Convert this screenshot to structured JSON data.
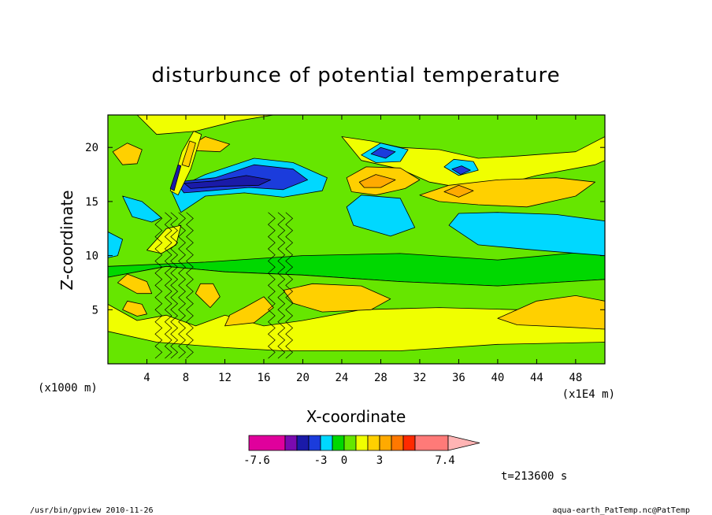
{
  "chart_data": {
    "type": "heatmap",
    "title": "disturbunce of potential temperature",
    "xlabel": "X-coordinate",
    "ylabel": "Z-coordinate",
    "x_unit_label": "(x1000 m)",
    "x_scale_label": "(x1E4 m)",
    "xlim": [
      0,
      51
    ],
    "ylim": [
      0,
      23
    ],
    "x_ticks": [
      "4",
      "8",
      "12",
      "16",
      "20",
      "24",
      "28",
      "32",
      "36",
      "40",
      "44",
      "48"
    ],
    "x_tick_values": [
      4,
      8,
      12,
      16,
      20,
      24,
      28,
      32,
      36,
      40,
      44,
      48
    ],
    "y_ticks": [
      "5",
      "10",
      "15",
      "20"
    ],
    "y_tick_values": [
      5,
      10,
      15,
      20
    ],
    "colorbar": {
      "colors": [
        "#e0009c",
        "#7a0ab0",
        "#1a1aa8",
        "#1b3cdc",
        "#00d8ff",
        "#00d800",
        "#66e600",
        "#f0ff00",
        "#ffd000",
        "#ffaa00",
        "#ff7800",
        "#ff2a00",
        "#ff7a78",
        "#ffb4b4"
      ],
      "labels": [
        "-7.6",
        "-3",
        "0",
        "3",
        "7.4"
      ],
      "label_slots": [
        0,
        4,
        6,
        9,
        13
      ]
    },
    "time_label": "t=213600 s",
    "regions": [
      {
        "level": 1,
        "color": "#f0ff00",
        "pts": [
          [
            0,
            0
          ],
          [
            0,
            8
          ],
          [
            6,
            9
          ],
          [
            12,
            8.5
          ],
          [
            20,
            8.2
          ],
          [
            30,
            7.6
          ],
          [
            40,
            7.2
          ],
          [
            51,
            7.8
          ],
          [
            51,
            0
          ]
        ]
      },
      {
        "level": 0,
        "color": "#66e600",
        "pts": [
          [
            0,
            0
          ],
          [
            0,
            3
          ],
          [
            5,
            2
          ],
          [
            12,
            1.5
          ],
          [
            18,
            1.2
          ],
          [
            30,
            1.2
          ],
          [
            40,
            1.8
          ],
          [
            51,
            2
          ],
          [
            51,
            0
          ]
        ]
      },
      {
        "level": 0,
        "color": "#66e600",
        "pts": [
          [
            0,
            5.5
          ],
          [
            3,
            4
          ],
          [
            6,
            4.5
          ],
          [
            9,
            3.5
          ],
          [
            12,
            4.5
          ],
          [
            16,
            3.5
          ],
          [
            20,
            4
          ],
          [
            26,
            5
          ],
          [
            34,
            5.2
          ],
          [
            42,
            5
          ],
          [
            51,
            5.6
          ],
          [
            51,
            7.8
          ],
          [
            40,
            7.2
          ],
          [
            30,
            7.6
          ],
          [
            20,
            8.2
          ],
          [
            12,
            8.5
          ],
          [
            6,
            9
          ],
          [
            0,
            8
          ]
        ]
      },
      {
        "level": 2,
        "color": "#ffd000",
        "pts": [
          [
            1,
            7.5
          ],
          [
            3,
            6.5
          ],
          [
            4.5,
            6.5
          ],
          [
            4,
            7.6
          ],
          [
            2,
            8.3
          ]
        ]
      },
      {
        "level": 2,
        "color": "#ffd000",
        "pts": [
          [
            1.5,
            5
          ],
          [
            3,
            4.4
          ],
          [
            4,
            4.6
          ],
          [
            3.5,
            5.5
          ],
          [
            2,
            5.8
          ]
        ]
      },
      {
        "level": 2,
        "color": "#ffd000",
        "pts": [
          [
            9,
            6.5
          ],
          [
            10.5,
            5.2
          ],
          [
            11.5,
            6.2
          ],
          [
            10.8,
            7.4
          ],
          [
            9.5,
            7.4
          ]
        ]
      },
      {
        "level": 2,
        "color": "#ffd000",
        "pts": [
          [
            12,
            3.5
          ],
          [
            15,
            3.8
          ],
          [
            17,
            5.2
          ],
          [
            16,
            6.2
          ],
          [
            14,
            5.2
          ],
          [
            12.5,
            4.5
          ]
        ]
      },
      {
        "level": 2,
        "color": "#ffd000",
        "pts": [
          [
            18,
            6.8
          ],
          [
            21,
            7.4
          ],
          [
            26,
            7.2
          ],
          [
            29,
            6
          ],
          [
            27,
            5
          ],
          [
            22,
            4.8
          ],
          [
            19,
            5.6
          ]
        ]
      },
      {
        "level": 2,
        "color": "#ffd000",
        "pts": [
          [
            40,
            4.2
          ],
          [
            44,
            5.8
          ],
          [
            48,
            6.3
          ],
          [
            51,
            5.8
          ],
          [
            51,
            3.2
          ],
          [
            47,
            3.4
          ],
          [
            42,
            3.6
          ]
        ]
      },
      {
        "level": 0,
        "color": "#66e600",
        "pts": [
          [
            0,
            9
          ],
          [
            10,
            9.4
          ],
          [
            20,
            10
          ],
          [
            30,
            10.2
          ],
          [
            40,
            9.6
          ],
          [
            51,
            10.5
          ],
          [
            51,
            23
          ],
          [
            0,
            23
          ]
        ]
      },
      {
        "level": 2,
        "color": "#ffd000",
        "pts": [
          [
            0.5,
            19.6
          ],
          [
            2,
            20.4
          ],
          [
            3.5,
            19.8
          ],
          [
            3,
            18.5
          ],
          [
            1.5,
            18.4
          ]
        ]
      },
      {
        "level": 2,
        "color": "#ffd000",
        "pts": [
          [
            8.5,
            20.2
          ],
          [
            10,
            21
          ],
          [
            12.5,
            20.3
          ],
          [
            11.5,
            19.6
          ],
          [
            9,
            19.7
          ]
        ]
      },
      {
        "level": 1,
        "color": "#f0ff00",
        "pts": [
          [
            0,
            23
          ],
          [
            3,
            23
          ],
          [
            5,
            21.2
          ],
          [
            9,
            21.5
          ],
          [
            13,
            22.4
          ],
          [
            17,
            23
          ]
        ]
      },
      {
        "level": 1,
        "color": "#f0ff00",
        "pts": [
          [
            4,
            10.5
          ],
          [
            6,
            12.5
          ],
          [
            7.5,
            12.8
          ],
          [
            7,
            11
          ],
          [
            5.5,
            10.2
          ]
        ]
      },
      {
        "level": 1,
        "color": "#f0ff00",
        "pts": [
          [
            24,
            21
          ],
          [
            26,
            18.8
          ],
          [
            30,
            18
          ],
          [
            33,
            16.8
          ],
          [
            38,
            16
          ],
          [
            44,
            17.4
          ],
          [
            50,
            18.4
          ],
          [
            51,
            18.8
          ],
          [
            51,
            21
          ],
          [
            48,
            19.6
          ],
          [
            42,
            19.2
          ],
          [
            38,
            19
          ],
          [
            34,
            19.8
          ],
          [
            30,
            20
          ],
          [
            27,
            20.6
          ]
        ]
      },
      {
        "level": 2,
        "color": "#ffd000",
        "pts": [
          [
            24.5,
            17.2
          ],
          [
            26.5,
            18.2
          ],
          [
            30,
            18.1
          ],
          [
            32,
            17
          ],
          [
            30.5,
            16.2
          ],
          [
            27.5,
            15.6
          ],
          [
            25,
            15.9
          ]
        ]
      },
      {
        "level": 3,
        "color": "#ffaa00",
        "pts": [
          [
            25.8,
            16.8
          ],
          [
            27.5,
            17.5
          ],
          [
            29.5,
            17
          ],
          [
            28,
            16.3
          ],
          [
            26.3,
            16.3
          ]
        ]
      },
      {
        "level": 2,
        "color": "#ffd000",
        "pts": [
          [
            32,
            15.6
          ],
          [
            35,
            16.5
          ],
          [
            40,
            17
          ],
          [
            46,
            17.2
          ],
          [
            50,
            16.8
          ],
          [
            48,
            15.5
          ],
          [
            43,
            14.5
          ],
          [
            38,
            14.7
          ],
          [
            34,
            15
          ]
        ]
      },
      {
        "level": 3,
        "color": "#ffaa00",
        "pts": [
          [
            34.5,
            15.9
          ],
          [
            36,
            16.5
          ],
          [
            37.5,
            16
          ],
          [
            36,
            15.4
          ]
        ]
      },
      {
        "level": -1,
        "color": "#00d8ff",
        "pts": [
          [
            24.5,
            14.5
          ],
          [
            25.2,
            12.8
          ],
          [
            29,
            11.8
          ],
          [
            31.5,
            12.6
          ],
          [
            30,
            15.3
          ],
          [
            26,
            15.6
          ]
        ]
      },
      {
        "level": -1,
        "color": "#00d8ff",
        "pts": [
          [
            35,
            12.8
          ],
          [
            38,
            11
          ],
          [
            44,
            10.5
          ],
          [
            51,
            10
          ],
          [
            51,
            13.2
          ],
          [
            46,
            13.8
          ],
          [
            40,
            14
          ],
          [
            36,
            13.9
          ]
        ]
      },
      {
        "level": -1,
        "color": "#00d8ff",
        "pts": [
          [
            26,
            19.3
          ],
          [
            28,
            20.4
          ],
          [
            30.8,
            19.8
          ],
          [
            30,
            18.7
          ],
          [
            27.5,
            18.6
          ]
        ]
      },
      {
        "level": -2,
        "color": "#1b3cdc",
        "pts": [
          [
            27,
            19.4
          ],
          [
            28,
            20
          ],
          [
            29.5,
            19.6
          ],
          [
            28.5,
            19
          ]
        ]
      },
      {
        "level": -1,
        "color": "#00d8ff",
        "pts": [
          [
            34.5,
            18.2
          ],
          [
            35.5,
            18.9
          ],
          [
            37.5,
            18.7
          ],
          [
            38,
            17.9
          ],
          [
            36,
            17.4
          ]
        ]
      },
      {
        "level": -2,
        "color": "#1b3cdc",
        "pts": [
          [
            35.3,
            18
          ],
          [
            36.3,
            18.3
          ],
          [
            37.2,
            17.9
          ],
          [
            36.2,
            17.5
          ]
        ]
      },
      {
        "level": -1,
        "color": "#00d8ff",
        "pts": [
          [
            6.5,
            16
          ],
          [
            10,
            17.5
          ],
          [
            15,
            19
          ],
          [
            19,
            18.6
          ],
          [
            22.5,
            17.2
          ],
          [
            22,
            16
          ],
          [
            18,
            15.4
          ],
          [
            14,
            15.8
          ],
          [
            10,
            15.5
          ],
          [
            7.5,
            14
          ]
        ]
      },
      {
        "level": -1,
        "color": "#00d8ff",
        "pts": [
          [
            1.5,
            15.5
          ],
          [
            3.5,
            15
          ],
          [
            5.5,
            13.5
          ],
          [
            4.5,
            13.1
          ],
          [
            2.5,
            13.6
          ]
        ]
      },
      {
        "level": -1,
        "color": "#00d8ff",
        "pts": [
          [
            0,
            12.2
          ],
          [
            1.5,
            11.5
          ],
          [
            1,
            10
          ],
          [
            0,
            9.8
          ]
        ]
      },
      {
        "level": -2,
        "color": "#1b3cdc",
        "pts": [
          [
            7,
            16.8
          ],
          [
            11,
            17.2
          ],
          [
            15,
            18.4
          ],
          [
            19,
            18
          ],
          [
            20.5,
            17
          ],
          [
            18,
            16.1
          ],
          [
            14.5,
            16.3
          ],
          [
            10.5,
            16
          ],
          [
            7.8,
            15.8
          ]
        ]
      },
      {
        "level": -3,
        "color": "#1a1aa8",
        "pts": [
          [
            7.8,
            16.7
          ],
          [
            11,
            16.9
          ],
          [
            14.2,
            17.4
          ],
          [
            16.7,
            17
          ],
          [
            15.5,
            16.5
          ],
          [
            11.5,
            16.4
          ],
          [
            8.5,
            16.2
          ]
        ]
      },
      {
        "level": 1,
        "color": "#f0ff00",
        "pts": [
          [
            6.4,
            16
          ],
          [
            7.6,
            19.6
          ],
          [
            8.8,
            21.5
          ],
          [
            9.6,
            21.2
          ],
          [
            8.5,
            18
          ],
          [
            7.2,
            15.6
          ]
        ]
      },
      {
        "level": 2,
        "color": "#ffd000",
        "pts": [
          [
            7.6,
            18.4
          ],
          [
            8.4,
            20.6
          ],
          [
            9,
            20.4
          ],
          [
            8.3,
            18.2
          ]
        ]
      },
      {
        "level": -3,
        "color": "#1a1aa8",
        "pts": [
          [
            6.4,
            16.2
          ],
          [
            7.2,
            18.4
          ],
          [
            7.5,
            18.3
          ],
          [
            6.8,
            16
          ]
        ]
      }
    ],
    "hatch_x": [
      5.2,
      6.2,
      6.8,
      7.6,
      8.4,
      16.8,
      17.8,
      18.6
    ],
    "hatch_yrange": [
      0.5,
      14
    ]
  },
  "footer": {
    "left": "/usr/bin/gpview  2010-11-26",
    "right": "aqua-earth_PatTemp.nc@PatTemp"
  }
}
